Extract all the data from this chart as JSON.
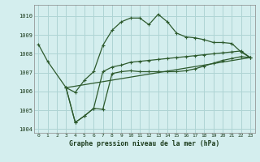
{
  "title": "Graphe pression niveau de la mer (hPa)",
  "background_color": "#d4eeee",
  "grid_color": "#aed4d4",
  "line_color": "#2d5a2d",
  "ylim": [
    1003.8,
    1010.6
  ],
  "xlim": [
    -0.5,
    23.5
  ],
  "yticks": [
    1004,
    1005,
    1006,
    1007,
    1008,
    1009,
    1010
  ],
  "xticks": [
    0,
    1,
    2,
    3,
    4,
    5,
    6,
    7,
    8,
    9,
    10,
    11,
    12,
    13,
    14,
    15,
    16,
    17,
    18,
    19,
    20,
    21,
    22,
    23
  ],
  "series": [
    {
      "x": [
        0,
        1,
        3,
        4,
        5,
        6,
        7,
        8,
        9,
        10,
        11,
        12,
        13,
        14,
        15,
        16,
        17,
        18,
        19,
        20,
        21,
        22,
        23
      ],
      "y": [
        1008.5,
        1007.6,
        1006.2,
        1005.95,
        1006.6,
        1007.05,
        1008.45,
        1009.25,
        1009.7,
        1009.9,
        1009.9,
        1009.55,
        1010.1,
        1009.7,
        1009.1,
        1008.9,
        1008.85,
        1008.75,
        1008.6,
        1008.6,
        1008.55,
        1008.1,
        1007.8
      ],
      "marker": true
    },
    {
      "x": [
        3,
        4,
        5,
        6,
        7,
        8,
        9,
        10,
        11,
        12,
        13,
        14,
        15,
        16,
        17,
        18,
        19,
        20,
        21,
        22,
        23
      ],
      "y": [
        1006.2,
        1004.35,
        1004.7,
        1005.1,
        1005.05,
        1006.95,
        1007.05,
        1007.1,
        1007.05,
        1007.05,
        1007.05,
        1007.05,
        1007.05,
        1007.1,
        1007.2,
        1007.35,
        1007.5,
        1007.65,
        1007.75,
        1007.85,
        1007.8
      ],
      "marker": true
    },
    {
      "x": [
        3,
        4,
        5,
        6,
        7,
        8,
        9,
        10,
        11,
        12,
        13,
        14,
        15,
        16,
        17,
        18,
        19,
        20,
        21,
        22,
        23
      ],
      "y": [
        1006.2,
        1004.35,
        1004.7,
        1005.1,
        1007.05,
        1007.3,
        1007.4,
        1007.55,
        1007.6,
        1007.65,
        1007.7,
        1007.75,
        1007.8,
        1007.85,
        1007.9,
        1007.95,
        1008.0,
        1008.05,
        1008.1,
        1008.15,
        1007.8
      ],
      "marker": true
    },
    {
      "x": [
        3,
        23
      ],
      "y": [
        1006.2,
        1007.8
      ],
      "marker": false
    }
  ]
}
